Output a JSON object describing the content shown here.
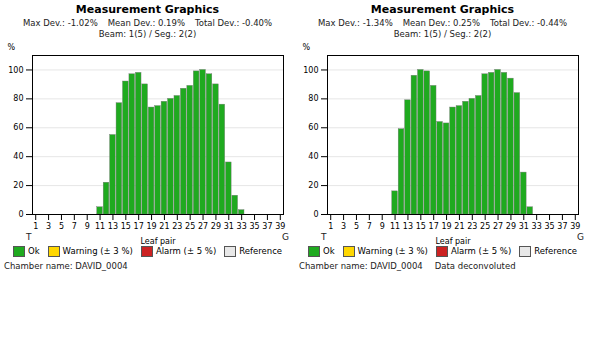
{
  "chart_data": [
    {
      "type": "bar",
      "title": "Measurement Graphics",
      "stats": [
        "Max Dev.: -1.02%",
        "Mean Dev.: 0.19%",
        "Total Dev.: -0.40%",
        "Beam: 1(5) / Seg.: 2(2)"
      ],
      "x": [
        11,
        12,
        13,
        14,
        15,
        16,
        17,
        18,
        19,
        20,
        21,
        22,
        23,
        24,
        25,
        26,
        27,
        28,
        29,
        30,
        31,
        32,
        33
      ],
      "values": [
        5,
        22,
        55,
        77,
        92,
        97,
        98,
        90,
        74,
        75,
        78,
        80,
        82,
        87,
        89,
        99,
        100,
        97,
        90,
        76,
        36,
        13,
        3
      ],
      "color": "#1faa1f",
      "xlabel": "Leaf pair",
      "ylabel": "%",
      "xlim": [
        0.5,
        39.5
      ],
      "xticks": [
        1,
        3,
        5,
        7,
        9,
        11,
        13,
        15,
        17,
        19,
        21,
        23,
        25,
        27,
        29,
        31,
        33,
        35,
        37,
        39
      ],
      "ylim": [
        0,
        110
      ],
      "yticks": [
        0,
        20,
        40,
        60,
        80,
        100
      ],
      "grid": true,
      "x_end_labels": [
        "T",
        "G"
      ],
      "legend": "bottom",
      "legend_entries": [
        {
          "label": "Ok",
          "color": "#1faa1f"
        },
        {
          "label": "Warning (± 3 %)",
          "color": "#ffd700"
        },
        {
          "label": "Alarm (± 5 %)",
          "color": "#cc2222"
        },
        {
          "label": "Reference",
          "color": "#e8e8e8"
        }
      ],
      "footnotes": [
        "Chamber name: DAVID_0004"
      ]
    },
    {
      "type": "bar",
      "title": "Measurement Graphics",
      "stats": [
        "Max Dev.: -1.34%",
        "Mean Dev.: 0.25%",
        "Total Dev.: -0.44%",
        "Beam: 1(5) / Seg.: 2(2)"
      ],
      "x": [
        11,
        12,
        13,
        14,
        15,
        16,
        17,
        18,
        19,
        20,
        21,
        22,
        23,
        24,
        25,
        26,
        27,
        28,
        29,
        30,
        31,
        32
      ],
      "values": [
        16,
        59,
        79,
        96,
        100,
        99,
        89,
        64,
        63,
        74,
        75,
        78,
        80,
        82,
        97,
        98,
        100,
        98,
        94,
        84,
        29,
        5
      ],
      "color": "#1faa1f",
      "xlabel": "Leaf pair",
      "ylabel": "%",
      "xlim": [
        0.5,
        39.5
      ],
      "xticks": [
        1,
        3,
        5,
        7,
        9,
        11,
        13,
        15,
        17,
        19,
        21,
        23,
        25,
        27,
        29,
        31,
        33,
        35,
        37,
        39
      ],
      "ylim": [
        0,
        110
      ],
      "yticks": [
        0,
        20,
        40,
        60,
        80,
        100
      ],
      "grid": true,
      "x_end_labels": [
        "T",
        "G"
      ],
      "legend": "bottom",
      "legend_entries": [
        {
          "label": "Ok",
          "color": "#1faa1f"
        },
        {
          "label": "Warning (± 3 %)",
          "color": "#ffd700"
        },
        {
          "label": "Alarm (± 5 %)",
          "color": "#cc2222"
        },
        {
          "label": "Reference",
          "color": "#e8e8e8"
        }
      ],
      "footnotes": [
        "Chamber name: DAVID_0004",
        "Data deconvoluted"
      ]
    }
  ]
}
